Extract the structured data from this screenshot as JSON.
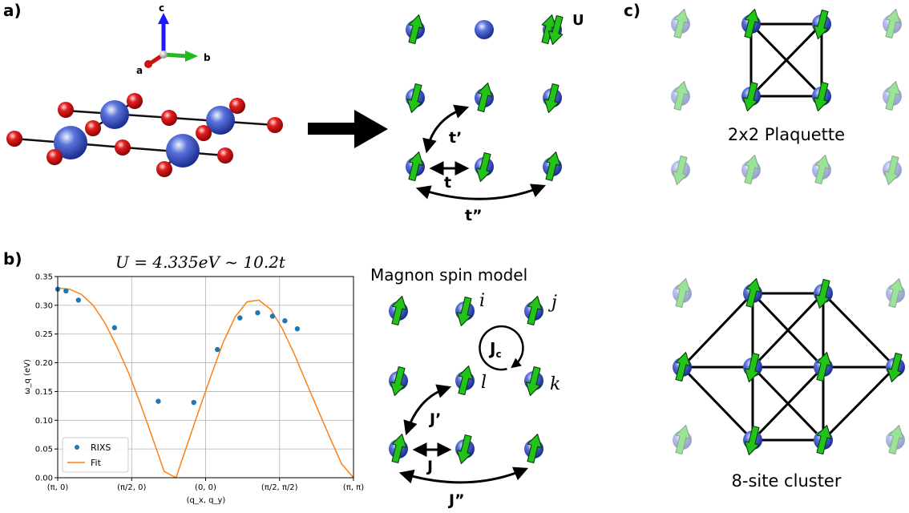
{
  "panel_labels": {
    "a": "a)",
    "b": "b)",
    "c": "c)"
  },
  "panel_a": {
    "axes": {
      "a": "a",
      "b": "b",
      "c": "c"
    },
    "hubbard": {
      "U": "U",
      "t": "t",
      "t_prime": "t’",
      "t_double_prime": "t”"
    }
  },
  "panel_b": {
    "model_title": "Magnon spin model",
    "site_labels": {
      "i": "i",
      "j": "j",
      "k": "k",
      "l": "l"
    },
    "couplings": {
      "J": "J",
      "J_prime": "J’",
      "J_double_prime": "J”",
      "Jc_main": "J",
      "Jc_sub": "c"
    }
  },
  "panel_c": {
    "plaquette_label": "2x2 Plaquette",
    "cluster_label": "8-site cluster"
  },
  "colors": {
    "spin_arrow": "#22c41a",
    "site": "#2a44c8",
    "oxygen": "#d81818",
    "marker": "#1f77b4",
    "fit": "#ff7f0e"
  },
  "chart_data": {
    "type": "scatter",
    "title": "U = 4.335eV ~ 10.2t",
    "xlabel": "(q_x, q_y)",
    "ylabel": "ω_q (eV)",
    "ylim": [
      0,
      0.35
    ],
    "xtick_labels": [
      "(π, 0)",
      "(π/2, 0)",
      "(0, 0)",
      "(π/2, π/2)",
      "(π, π)"
    ],
    "yticks": [
      "0.00",
      "0.05",
      "0.10",
      "0.15",
      "0.20",
      "0.25",
      "0.30",
      "0.35"
    ],
    "grid": true,
    "legend": "lower-left",
    "series": [
      {
        "name": "RIXS",
        "kind": "points",
        "x": [
          0.0,
          0.14,
          0.35,
          0.96,
          1.7,
          2.3,
          2.7,
          3.08,
          3.38,
          3.63,
          3.84,
          4.05
        ],
        "y": [
          0.328,
          0.325,
          0.309,
          0.261,
          0.133,
          0.131,
          0.223,
          0.278,
          0.287,
          0.281,
          0.273,
          0.259
        ]
      },
      {
        "name": "Fit",
        "kind": "line",
        "x": [
          0.0,
          0.2,
          0.4,
          0.6,
          0.8,
          1.0,
          1.2,
          1.4,
          1.6,
          1.8,
          2.0,
          2.2,
          2.4,
          2.6,
          2.8,
          3.0,
          3.2,
          3.4,
          3.6,
          3.8,
          4.0,
          4.2,
          4.4,
          4.6,
          4.8,
          5.0
        ],
        "y": [
          0.33,
          0.328,
          0.319,
          0.3,
          0.269,
          0.228,
          0.182,
          0.128,
          0.07,
          0.011,
          0.0,
          0.061,
          0.121,
          0.18,
          0.236,
          0.28,
          0.306,
          0.309,
          0.293,
          0.259,
          0.215,
          0.166,
          0.118,
          0.07,
          0.024,
          0.0
        ]
      }
    ]
  }
}
